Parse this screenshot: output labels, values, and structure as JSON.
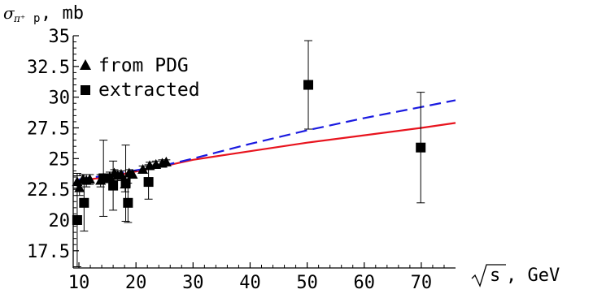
{
  "chart_data": {
    "type": "scatter",
    "ylabel_symbol": "σ",
    "ylabel_sub": "π⁺",
    "ylabel_sub2": "p",
    "ylabel_unit": ", mb",
    "xlabel_sqrt": "s",
    "xlabel_unit": ", GeV",
    "xlim": [
      9,
      76
    ],
    "ylim": [
      16.1,
      35
    ],
    "x_ticks": [
      10,
      20,
      30,
      40,
      50,
      60,
      70
    ],
    "y_ticks": [
      17.5,
      20,
      22.5,
      25,
      27.5,
      30,
      32.5,
      35
    ],
    "y_tick_labels": [
      "17.5",
      "20",
      "22.5",
      "25",
      "27.5",
      "30",
      "32.5",
      "35"
    ],
    "x_tick_labels": [
      "10",
      "20",
      "30",
      "40",
      "50",
      "60",
      "70"
    ],
    "legend": [
      {
        "name": "from PDG",
        "marker": "triangle"
      },
      {
        "name": "extracted",
        "marker": "square"
      }
    ],
    "series": [
      {
        "name": "from PDG",
        "marker": "triangle",
        "points": [
          {
            "x": 9.7,
            "y": 23.1,
            "err": 0.5
          },
          {
            "x": 10.1,
            "y": 22.6,
            "err": 0.6
          },
          {
            "x": 10.7,
            "y": 23.3,
            "err": 0.4
          },
          {
            "x": 11.3,
            "y": 23.2,
            "err": 0.5
          },
          {
            "x": 11.9,
            "y": 23.3,
            "err": 0.4
          },
          {
            "x": 13.8,
            "y": 23.2,
            "err": 0.5
          },
          {
            "x": 14.3,
            "y": 23.4,
            "err": 0.3
          },
          {
            "x": 15.4,
            "y": 23.5,
            "err": 0.4
          },
          {
            "x": 16.2,
            "y": 23.8,
            "err": 0.3
          },
          {
            "x": 16.8,
            "y": 23.6,
            "err": 0.4
          },
          {
            "x": 17.4,
            "y": 23.7,
            "err": 0.3
          },
          {
            "x": 18.1,
            "y": 22.9,
            "err": 0.6
          },
          {
            "x": 18.8,
            "y": 23.8,
            "err": 0.3
          },
          {
            "x": 19.4,
            "y": 23.7,
            "err": 0.3
          },
          {
            "x": 21.2,
            "y": 24.1,
            "err": 0.3
          },
          {
            "x": 22.4,
            "y": 24.4,
            "err": 0.3
          },
          {
            "x": 23.5,
            "y": 24.5,
            "err": 0.3
          },
          {
            "x": 24.6,
            "y": 24.6,
            "err": 0.3
          },
          {
            "x": 25.3,
            "y": 24.7,
            "err": 0.2
          }
        ]
      },
      {
        "name": "extracted",
        "marker": "square",
        "points": [
          {
            "x": 9.7,
            "y": 20.0,
            "err": 3.8
          },
          {
            "x": 10.9,
            "y": 21.4,
            "err": 2.3
          },
          {
            "x": 14.3,
            "y": 23.4,
            "err": 3.1
          },
          {
            "x": 16.0,
            "y": 22.8,
            "err": 2.0
          },
          {
            "x": 18.6,
            "y": 21.4,
            "err": 1.6
          },
          {
            "x": 18.2,
            "y": 23.0,
            "err": 3.1
          },
          {
            "x": 22.2,
            "y": 23.1,
            "err": 1.4
          },
          {
            "x": 50.2,
            "y": 31.0,
            "err": 3.6
          },
          {
            "x": 69.9,
            "y": 25.9,
            "err": 4.5
          }
        ]
      }
    ],
    "curves": [
      {
        "name": "red-solid",
        "color": "#e8141e",
        "style": "solid",
        "points": [
          [
            10,
            23.2
          ],
          [
            15,
            23.5
          ],
          [
            20,
            23.95
          ],
          [
            25,
            24.4
          ],
          [
            30,
            24.9
          ],
          [
            40,
            25.6
          ],
          [
            50,
            26.3
          ],
          [
            60,
            26.9
          ],
          [
            70,
            27.5
          ],
          [
            76,
            27.9
          ]
        ]
      },
      {
        "name": "blue-dashed",
        "color": "#1a1ae0",
        "style": "dashed",
        "points": [
          [
            10,
            23.3
          ],
          [
            15,
            23.65
          ],
          [
            20,
            24.05
          ],
          [
            25,
            24.45
          ],
          [
            30,
            25.0
          ],
          [
            40,
            26.2
          ],
          [
            50,
            27.3
          ],
          [
            60,
            28.3
          ],
          [
            70,
            29.2
          ],
          [
            76,
            29.75
          ]
        ]
      }
    ]
  }
}
